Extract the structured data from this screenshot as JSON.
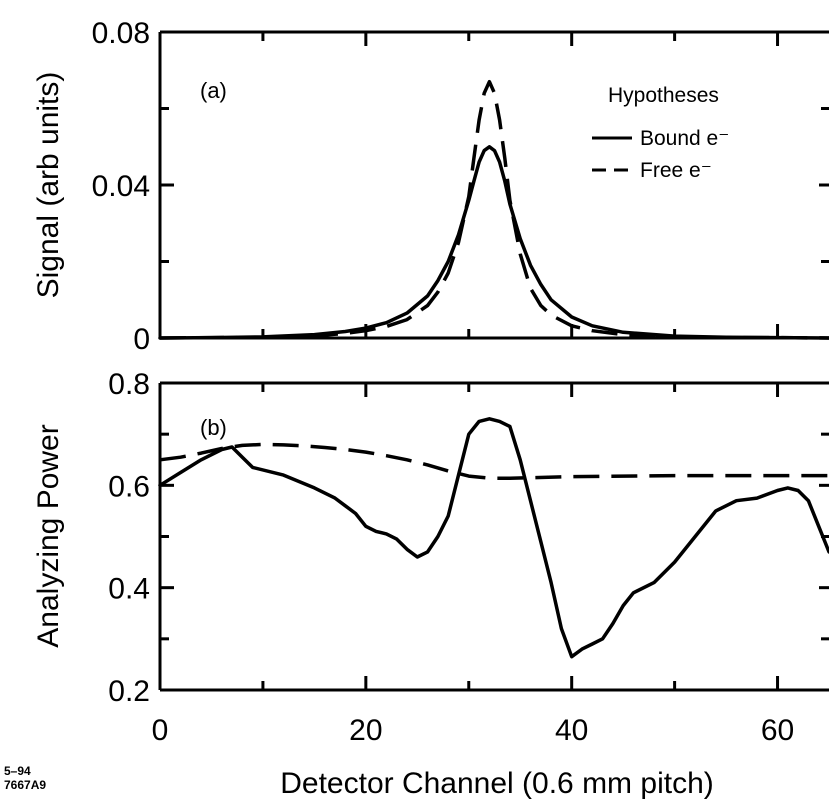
{
  "chart_data": [
    {
      "type": "line",
      "panel_label": "(a)",
      "ylabel": "Signal  (arb units)",
      "xlim": [
        0,
        65
      ],
      "ylim": [
        0,
        0.08
      ],
      "y_ticks": [
        "0",
        "0.04",
        "0.08"
      ],
      "y_tick_values": [
        0,
        0.04,
        0.08
      ],
      "legend": {
        "title": "Hypotheses",
        "position": "top-right"
      },
      "series": [
        {
          "name": "Bound e⁻",
          "style": "solid",
          "x": [
            0,
            5,
            10,
            15,
            18,
            20,
            22,
            24,
            26,
            27,
            28,
            29,
            30,
            30.5,
            31,
            31.5,
            32,
            32.5,
            33,
            33.5,
            34,
            35,
            36,
            37,
            38,
            40,
            42,
            45,
            50,
            55,
            60,
            65
          ],
          "y": [
            0,
            0.0001,
            0.0003,
            0.0009,
            0.0017,
            0.0026,
            0.004,
            0.0065,
            0.011,
            0.015,
            0.02,
            0.027,
            0.036,
            0.041,
            0.046,
            0.049,
            0.05,
            0.049,
            0.046,
            0.041,
            0.035,
            0.026,
            0.019,
            0.014,
            0.01,
            0.0055,
            0.0032,
            0.0015,
            0.0005,
            0.0002,
            0.0001,
            0
          ]
        },
        {
          "name": "Free e⁻",
          "style": "dashed",
          "x": [
            0,
            5,
            10,
            15,
            18,
            20,
            22,
            24,
            26,
            27,
            28,
            29,
            30,
            30.5,
            31,
            31.5,
            32,
            32.5,
            33,
            33.5,
            34,
            35,
            36,
            37,
            38,
            40,
            42,
            45,
            50,
            55,
            60,
            65
          ],
          "y": [
            0,
            0.0001,
            0.0002,
            0.0006,
            0.0012,
            0.0019,
            0.003,
            0.0048,
            0.0085,
            0.012,
            0.017,
            0.025,
            0.037,
            0.047,
            0.057,
            0.064,
            0.067,
            0.064,
            0.057,
            0.047,
            0.036,
            0.022,
            0.013,
            0.0085,
            0.006,
            0.0032,
            0.0019,
            0.0009,
            0.0003,
            0.0001,
            0.0001,
            0
          ]
        }
      ]
    },
    {
      "type": "line",
      "panel_label": "(b)",
      "ylabel": "Analyzing Power",
      "xlabel": "Detector Channel   (0.6 mm pitch)",
      "xlim": [
        0,
        65
      ],
      "ylim": [
        0.2,
        0.8
      ],
      "x_ticks": [
        "0",
        "20",
        "40",
        "60"
      ],
      "x_tick_values": [
        0,
        20,
        40,
        60
      ],
      "y_ticks": [
        "0.2",
        "0.4",
        "0.6",
        "0.8"
      ],
      "y_tick_values": [
        0.2,
        0.4,
        0.6,
        0.8
      ],
      "series": [
        {
          "name": "Bound e⁻",
          "style": "solid",
          "x": [
            0,
            2,
            4,
            6,
            7,
            8,
            9,
            12,
            15,
            17,
            18,
            19,
            20,
            21,
            22,
            23,
            24,
            25,
            26,
            27,
            28,
            29,
            30,
            31,
            32,
            33,
            34,
            35,
            36,
            37,
            38,
            39,
            40,
            41,
            42,
            43,
            44,
            45,
            46,
            48,
            50,
            52,
            54,
            56,
            58,
            60,
            61,
            62,
            63,
            64,
            65
          ],
          "y": [
            0.6,
            0.625,
            0.65,
            0.67,
            0.675,
            0.655,
            0.635,
            0.62,
            0.595,
            0.575,
            0.56,
            0.545,
            0.52,
            0.51,
            0.505,
            0.495,
            0.475,
            0.46,
            0.47,
            0.5,
            0.54,
            0.62,
            0.7,
            0.725,
            0.73,
            0.725,
            0.715,
            0.65,
            0.57,
            0.49,
            0.41,
            0.32,
            0.265,
            0.28,
            0.29,
            0.3,
            0.33,
            0.365,
            0.39,
            0.41,
            0.45,
            0.5,
            0.55,
            0.57,
            0.575,
            0.59,
            0.595,
            0.59,
            0.57,
            0.52,
            0.47
          ]
        },
        {
          "name": "Free e⁻",
          "style": "dashed",
          "x": [
            0,
            2,
            4,
            6,
            8,
            10,
            12,
            14,
            16,
            18,
            20,
            22,
            24,
            26,
            28,
            30,
            32,
            34,
            36,
            40,
            45,
            50,
            55,
            60,
            65
          ],
          "y": [
            0.65,
            0.655,
            0.663,
            0.672,
            0.678,
            0.68,
            0.679,
            0.677,
            0.674,
            0.67,
            0.665,
            0.658,
            0.65,
            0.64,
            0.628,
            0.618,
            0.614,
            0.614,
            0.615,
            0.617,
            0.618,
            0.619,
            0.619,
            0.619,
            0.619
          ]
        }
      ]
    }
  ],
  "corner_code": [
    "5–94",
    "7667A9"
  ]
}
